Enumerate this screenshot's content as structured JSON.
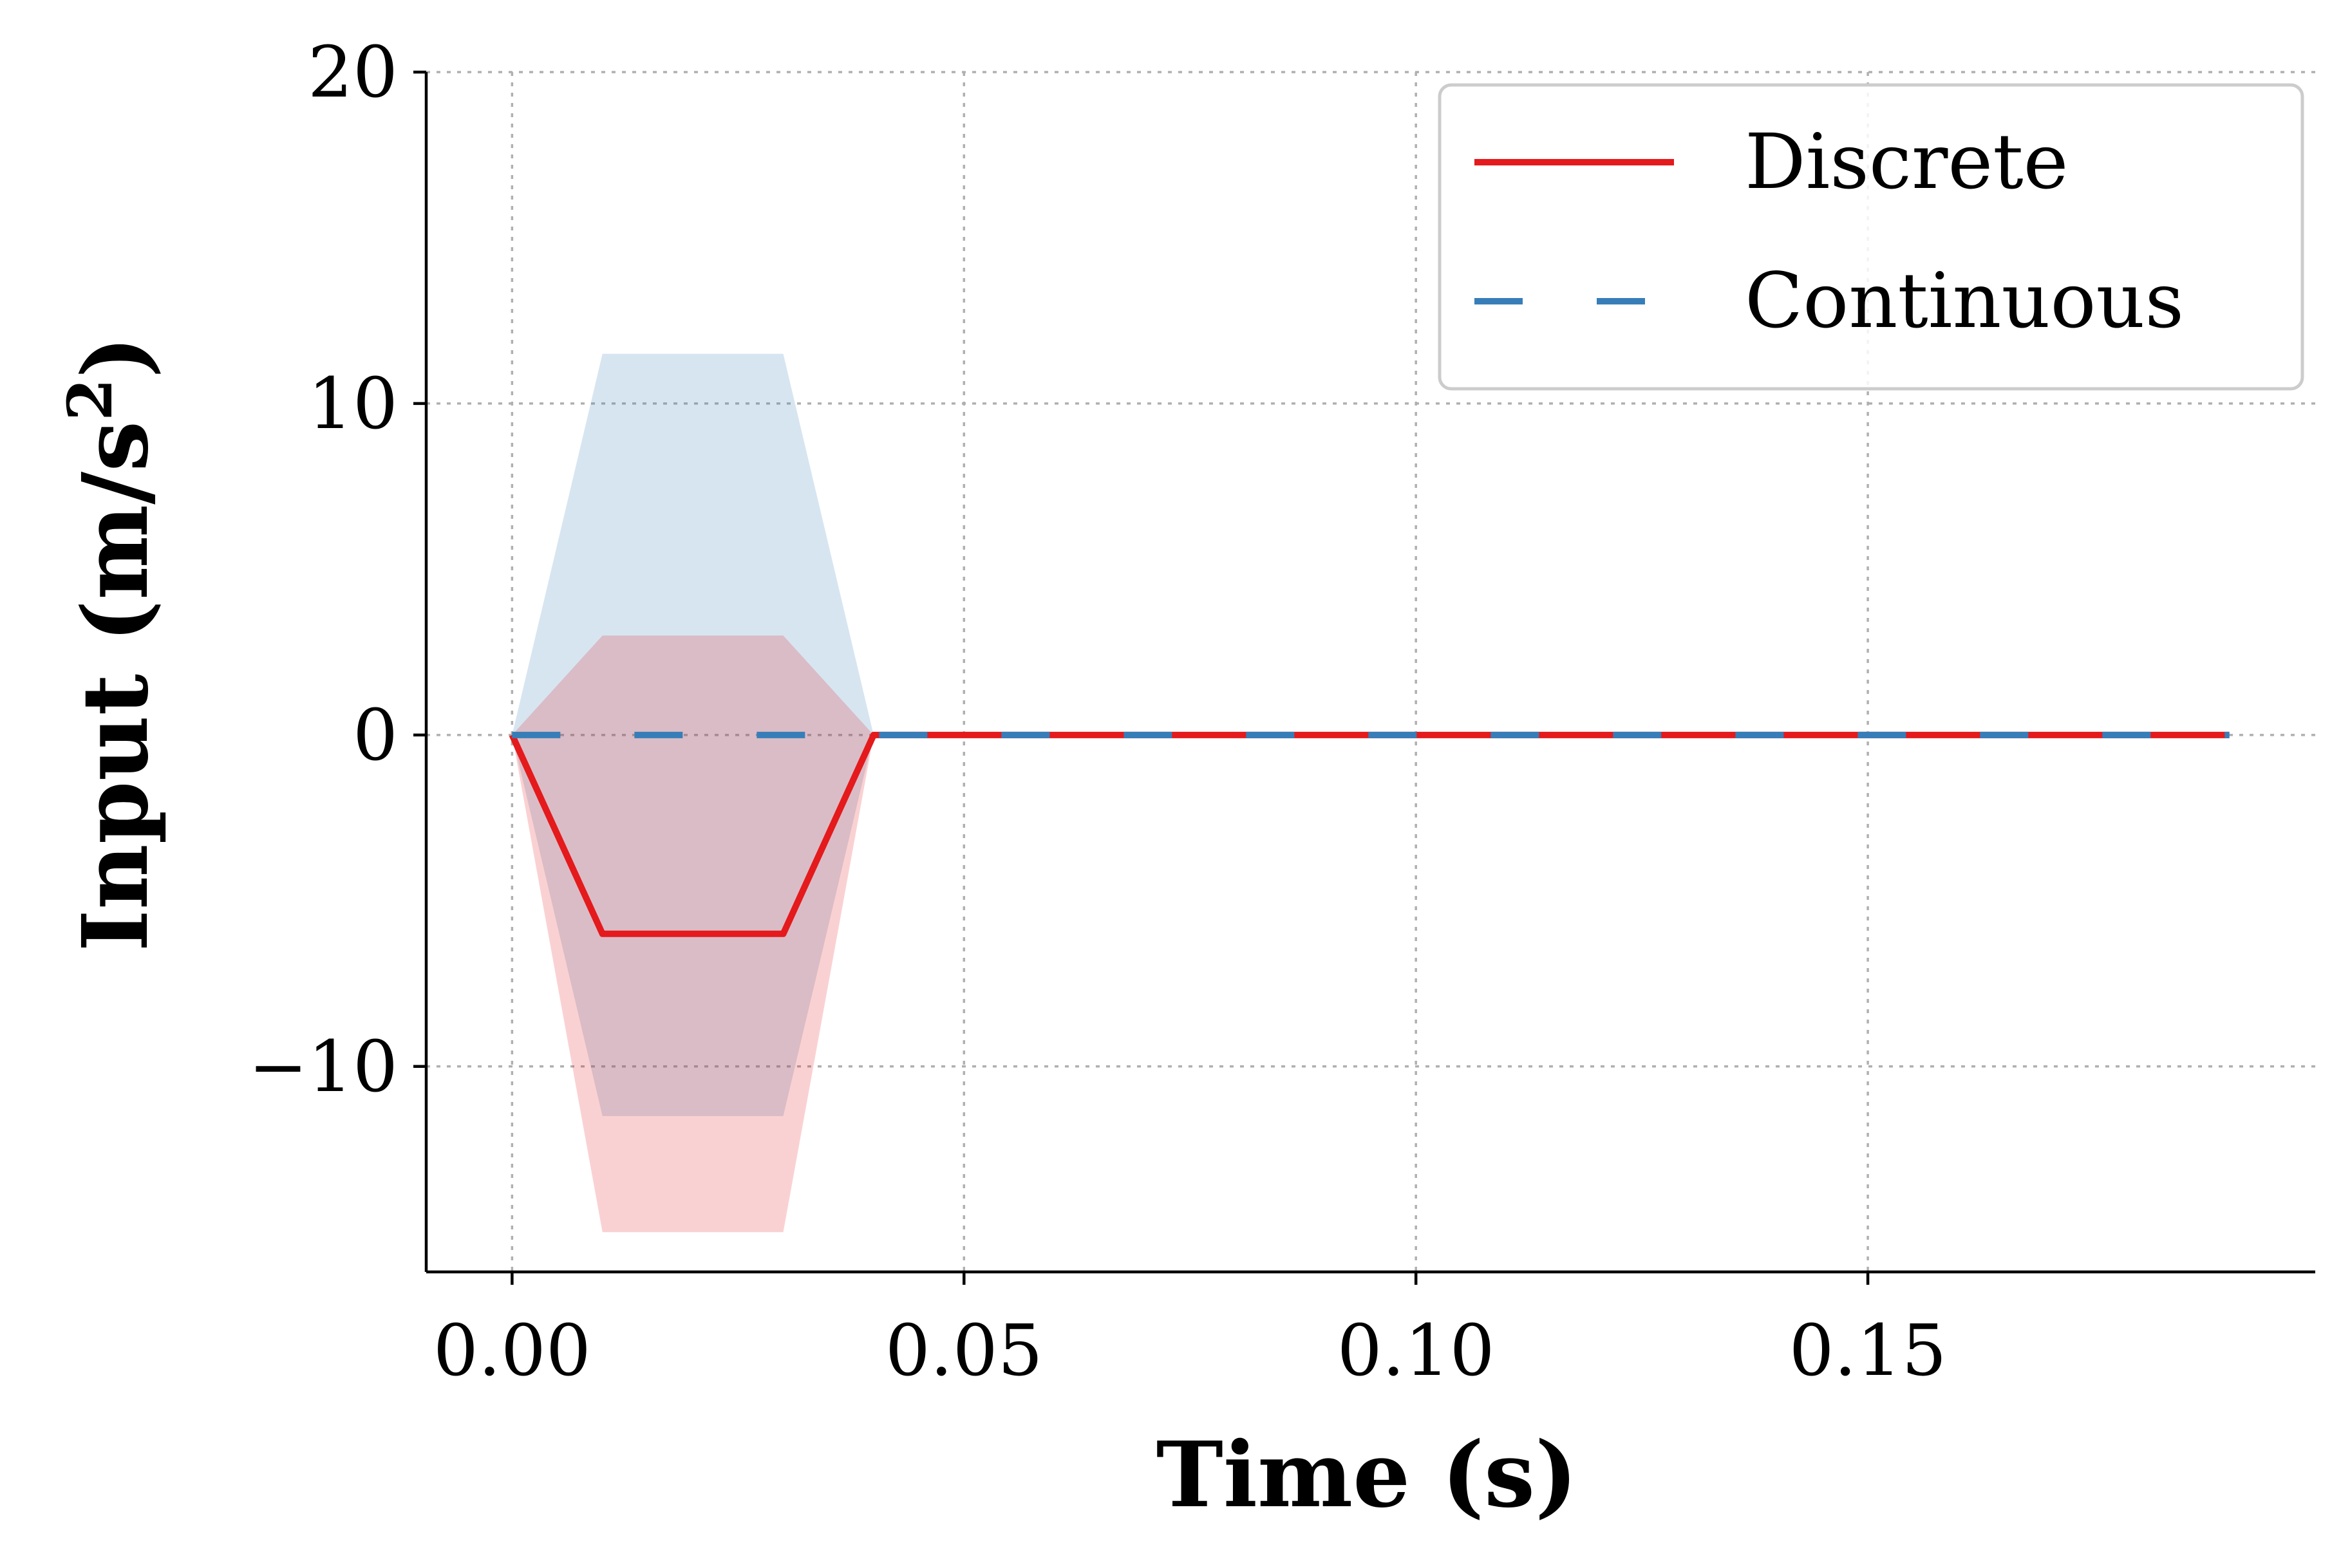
{
  "chart_data": {
    "type": "line",
    "xlabel": "Time (s)",
    "ylabel_main": "Input (m/s",
    "ylabel_sup": "2",
    "ylabel_close": ")",
    "xlim": [
      -0.0095,
      0.1995
    ],
    "ylim": [
      -16.2,
      20
    ],
    "xticks": [
      0.0,
      0.05,
      0.1,
      0.15
    ],
    "xtick_labels": [
      "0.00",
      "0.05",
      "0.10",
      "0.15"
    ],
    "yticks": [
      -10,
      0,
      10,
      20
    ],
    "ytick_labels": [
      "−10",
      "0",
      "10",
      "20"
    ],
    "grid": true,
    "legend_position": "top-right",
    "series": [
      {
        "name": "Discrete",
        "color": "#e41a1c",
        "style": "solid",
        "x": [
          0.0,
          0.01,
          0.02,
          0.03,
          0.04,
          0.05,
          0.06,
          0.07,
          0.08,
          0.09,
          0.1,
          0.11,
          0.12,
          0.13,
          0.14,
          0.15,
          0.16,
          0.17,
          0.18,
          0.19
        ],
        "y": [
          0,
          -6,
          -6,
          -6,
          0,
          0,
          0,
          0,
          0,
          0,
          0,
          0,
          0,
          0,
          0,
          0,
          0,
          0,
          0,
          0
        ],
        "band_upper": [
          0,
          3,
          3,
          3,
          0,
          0,
          0,
          0,
          0,
          0,
          0,
          0,
          0,
          0,
          0,
          0,
          0,
          0,
          0,
          0
        ],
        "band_lower": [
          0,
          -15,
          -15,
          -15,
          0,
          0,
          0,
          0,
          0,
          0,
          0,
          0,
          0,
          0,
          0,
          0,
          0,
          0,
          0,
          0
        ]
      },
      {
        "name": "Continuous",
        "color": "#377eb8",
        "style": "dashed",
        "x": [
          0.0,
          0.01,
          0.02,
          0.03,
          0.04,
          0.05,
          0.06,
          0.07,
          0.08,
          0.09,
          0.1,
          0.11,
          0.12,
          0.13,
          0.14,
          0.15,
          0.16,
          0.17,
          0.18,
          0.19
        ],
        "y": [
          0,
          0,
          0,
          0,
          0,
          0,
          0,
          0,
          0,
          0,
          0,
          0,
          0,
          0,
          0,
          0,
          0,
          0,
          0,
          0
        ],
        "band_upper": [
          0,
          11.5,
          11.5,
          11.5,
          0,
          0,
          0,
          0,
          0,
          0,
          0,
          0,
          0,
          0,
          0,
          0,
          0,
          0,
          0,
          0
        ],
        "band_lower": [
          0,
          -11.5,
          -11.5,
          -11.5,
          0,
          0,
          0,
          0,
          0,
          0,
          0,
          0,
          0,
          0,
          0,
          0,
          0,
          0,
          0,
          0
        ]
      }
    ]
  }
}
